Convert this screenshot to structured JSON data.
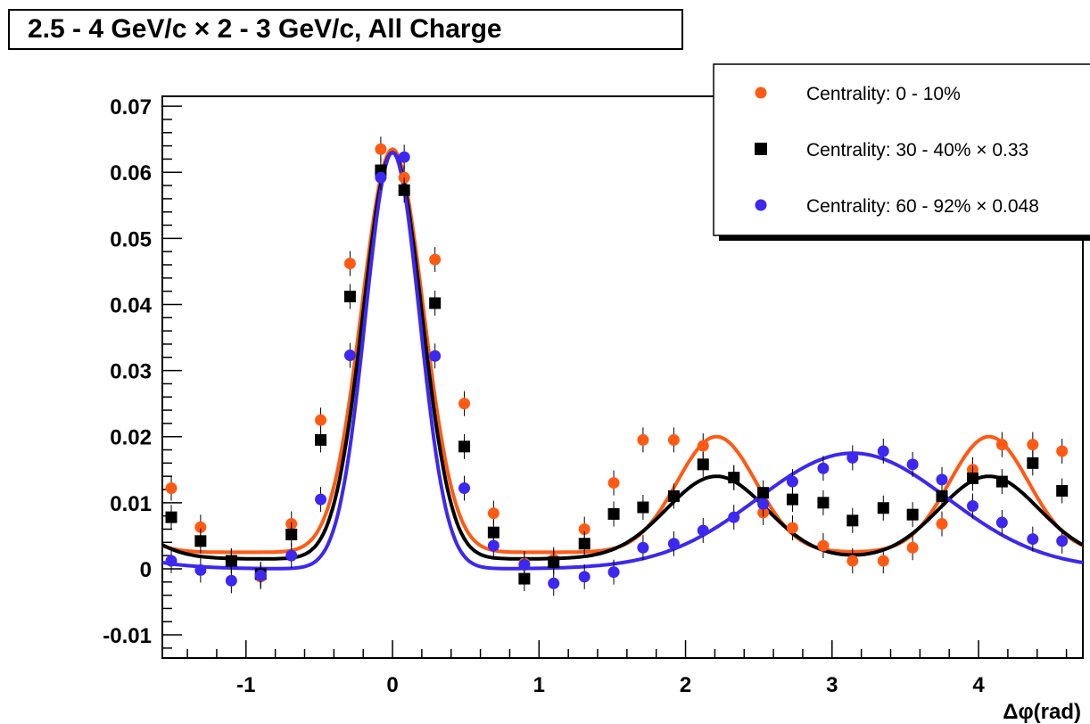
{
  "title": "2.5 - 4 GeV/c × 2 - 3 GeV/c,  All Charge",
  "chart_data": {
    "type": "scatter",
    "title": "2.5 - 4 GeV/c × 2 - 3 GeV/c,  All Charge",
    "xlabel": "Δφ(rad)",
    "ylabel": "",
    "xlim": [
      -1.571,
      4.712
    ],
    "ylim": [
      -0.0135,
      0.0715
    ],
    "xticks": [
      -1,
      0,
      1,
      2,
      3,
      4
    ],
    "yticks": [
      -0.01,
      0,
      0.01,
      0.02,
      0.03,
      0.04,
      0.05,
      0.06,
      0.07
    ],
    "xtick_labels": [
      "-1",
      "0",
      "1",
      "2",
      "3",
      "4"
    ],
    "ytick_labels": [
      "-0.01",
      "0",
      "0.01",
      "0.02",
      "0.03",
      "0.04",
      "0.05",
      "0.06",
      "0.07"
    ],
    "grid": false,
    "legend_position": "top-right",
    "series": [
      {
        "name": "Centrality:  0 - 10%",
        "color": "#ff5a14",
        "marker": "circle",
        "x": [
          -1.51,
          -1.31,
          -1.1,
          -0.9,
          -0.69,
          -0.49,
          -0.29,
          -0.08,
          0.08,
          0.29,
          0.49,
          0.69,
          0.9,
          1.1,
          1.31,
          1.51,
          1.71,
          1.92,
          2.12,
          2.33,
          2.53,
          2.73,
          2.94,
          3.14,
          3.35,
          3.55,
          3.75,
          3.96,
          4.16,
          4.37,
          4.57
        ],
        "y": [
          0.0122,
          0.0063,
          0.0012,
          -0.0012,
          0.0068,
          0.0225,
          0.0462,
          0.0635,
          0.0592,
          0.0468,
          0.025,
          0.0084,
          0.0008,
          0.0014,
          0.006,
          0.013,
          0.0195,
          0.0195,
          0.0186,
          0.0138,
          0.0085,
          0.0062,
          0.0035,
          0.0012,
          0.0012,
          0.0032,
          0.0068,
          0.015,
          0.0188,
          0.0188,
          0.0178
        ],
        "fit": {
          "base": 0.0025,
          "amp_near": 0.061,
          "sigma_near": 0.21,
          "amp_away": 0.0175,
          "sigma_away": 0.27,
          "away_offset": 0.93
        }
      },
      {
        "name": "Centrality: 30 - 40% × 0.33",
        "color": "#000000",
        "marker": "square",
        "x": [
          -1.51,
          -1.31,
          -1.1,
          -0.9,
          -0.69,
          -0.49,
          -0.29,
          -0.08,
          0.08,
          0.29,
          0.49,
          0.69,
          0.9,
          1.1,
          1.31,
          1.51,
          1.71,
          1.92,
          2.12,
          2.33,
          2.53,
          2.73,
          2.94,
          3.14,
          3.35,
          3.55,
          3.75,
          3.96,
          4.16,
          4.37,
          4.57
        ],
        "y": [
          0.0078,
          0.0042,
          0.0012,
          -0.0008,
          0.0052,
          0.0195,
          0.0412,
          0.0603,
          0.0573,
          0.0402,
          0.0185,
          0.0055,
          -0.0015,
          0.001,
          0.0038,
          0.0083,
          0.0093,
          0.011,
          0.0158,
          0.0138,
          0.0115,
          0.0105,
          0.01,
          0.0073,
          0.0092,
          0.0082,
          0.011,
          0.0137,
          0.0132,
          0.016,
          0.0118
        ],
        "fit": {
          "base": 0.0015,
          "amp_near": 0.0615,
          "sigma_near": 0.2,
          "amp_away": 0.0125,
          "sigma_away": 0.34,
          "away_offset": 0.93
        }
      },
      {
        "name": "Centrality: 60 - 92% × 0.048",
        "color": "#3c28f0",
        "marker": "circle",
        "x": [
          -1.51,
          -1.31,
          -1.1,
          -0.9,
          -0.69,
          -0.49,
          -0.29,
          -0.08,
          0.08,
          0.29,
          0.49,
          0.69,
          0.9,
          1.1,
          1.31,
          1.51,
          1.71,
          1.92,
          2.12,
          2.33,
          2.53,
          2.73,
          2.94,
          3.14,
          3.35,
          3.55,
          3.75,
          3.96,
          4.16,
          4.37,
          4.57
        ],
        "y": [
          0.0012,
          -0.0002,
          -0.0018,
          -0.001,
          0.002,
          0.0105,
          0.0323,
          0.0592,
          0.0623,
          0.0322,
          0.0122,
          0.0035,
          0.0006,
          -0.0022,
          -0.0012,
          -0.0005,
          0.0032,
          0.0038,
          0.0058,
          0.0078,
          0.0098,
          0.0132,
          0.0152,
          0.0168,
          0.0178,
          0.0158,
          0.0135,
          0.0095,
          0.007,
          0.0045,
          0.0042
        ],
        "fit": {
          "base": 0.0,
          "amp_near": 0.063,
          "sigma_near": 0.185,
          "amp_away": 0.0175,
          "sigma_away": 0.65,
          "away_offset": 0.0
        }
      }
    ]
  }
}
